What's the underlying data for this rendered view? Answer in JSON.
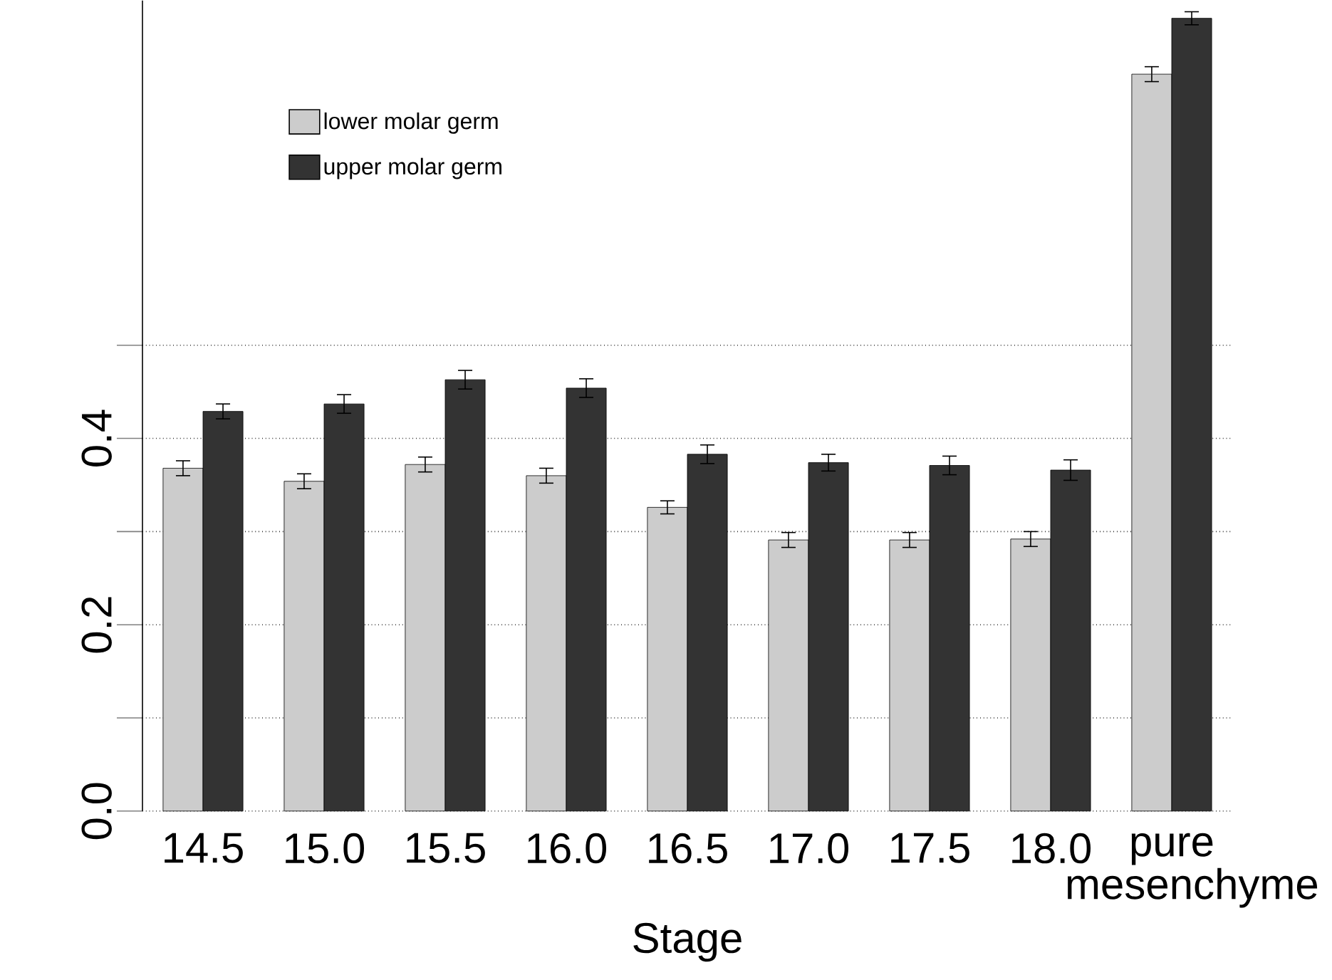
{
  "chart_data": {
    "type": "bar",
    "xlabel": "Stage",
    "categories": [
      "14.5",
      "15.0",
      "15.5",
      "16.0",
      "16.5",
      "17.0",
      "17.5",
      "18.0",
      "pure mesenchyme"
    ],
    "series": [
      {
        "name": "lower molar germ",
        "color": "#cccccc",
        "values": [
          0.368,
          0.354,
          0.372,
          0.36,
          0.326,
          0.291,
          0.291,
          0.292,
          0.791
        ],
        "errors": [
          0.008,
          0.008,
          0.008,
          0.008,
          0.007,
          0.008,
          0.008,
          0.008,
          0.008
        ]
      },
      {
        "name": "upper molar germ",
        "color": "#333333",
        "values": [
          0.429,
          0.437,
          0.463,
          0.454,
          0.383,
          0.374,
          0.371,
          0.366,
          0.851
        ],
        "errors": [
          0.008,
          0.01,
          0.01,
          0.01,
          0.01,
          0.009,
          0.01,
          0.011,
          0.007
        ]
      }
    ],
    "ylim": [
      0,
      0.87
    ],
    "yticks": [
      {
        "value": 0,
        "label": "0.0"
      },
      {
        "value": 0.1,
        "label": null
      },
      {
        "value": 0.2,
        "label": "0.2"
      },
      {
        "value": 0.3,
        "label": null
      },
      {
        "value": 0.4,
        "label": "0.4"
      },
      {
        "value": 0.5,
        "label": null
      }
    ],
    "grid": "y",
    "legend": "top left"
  }
}
